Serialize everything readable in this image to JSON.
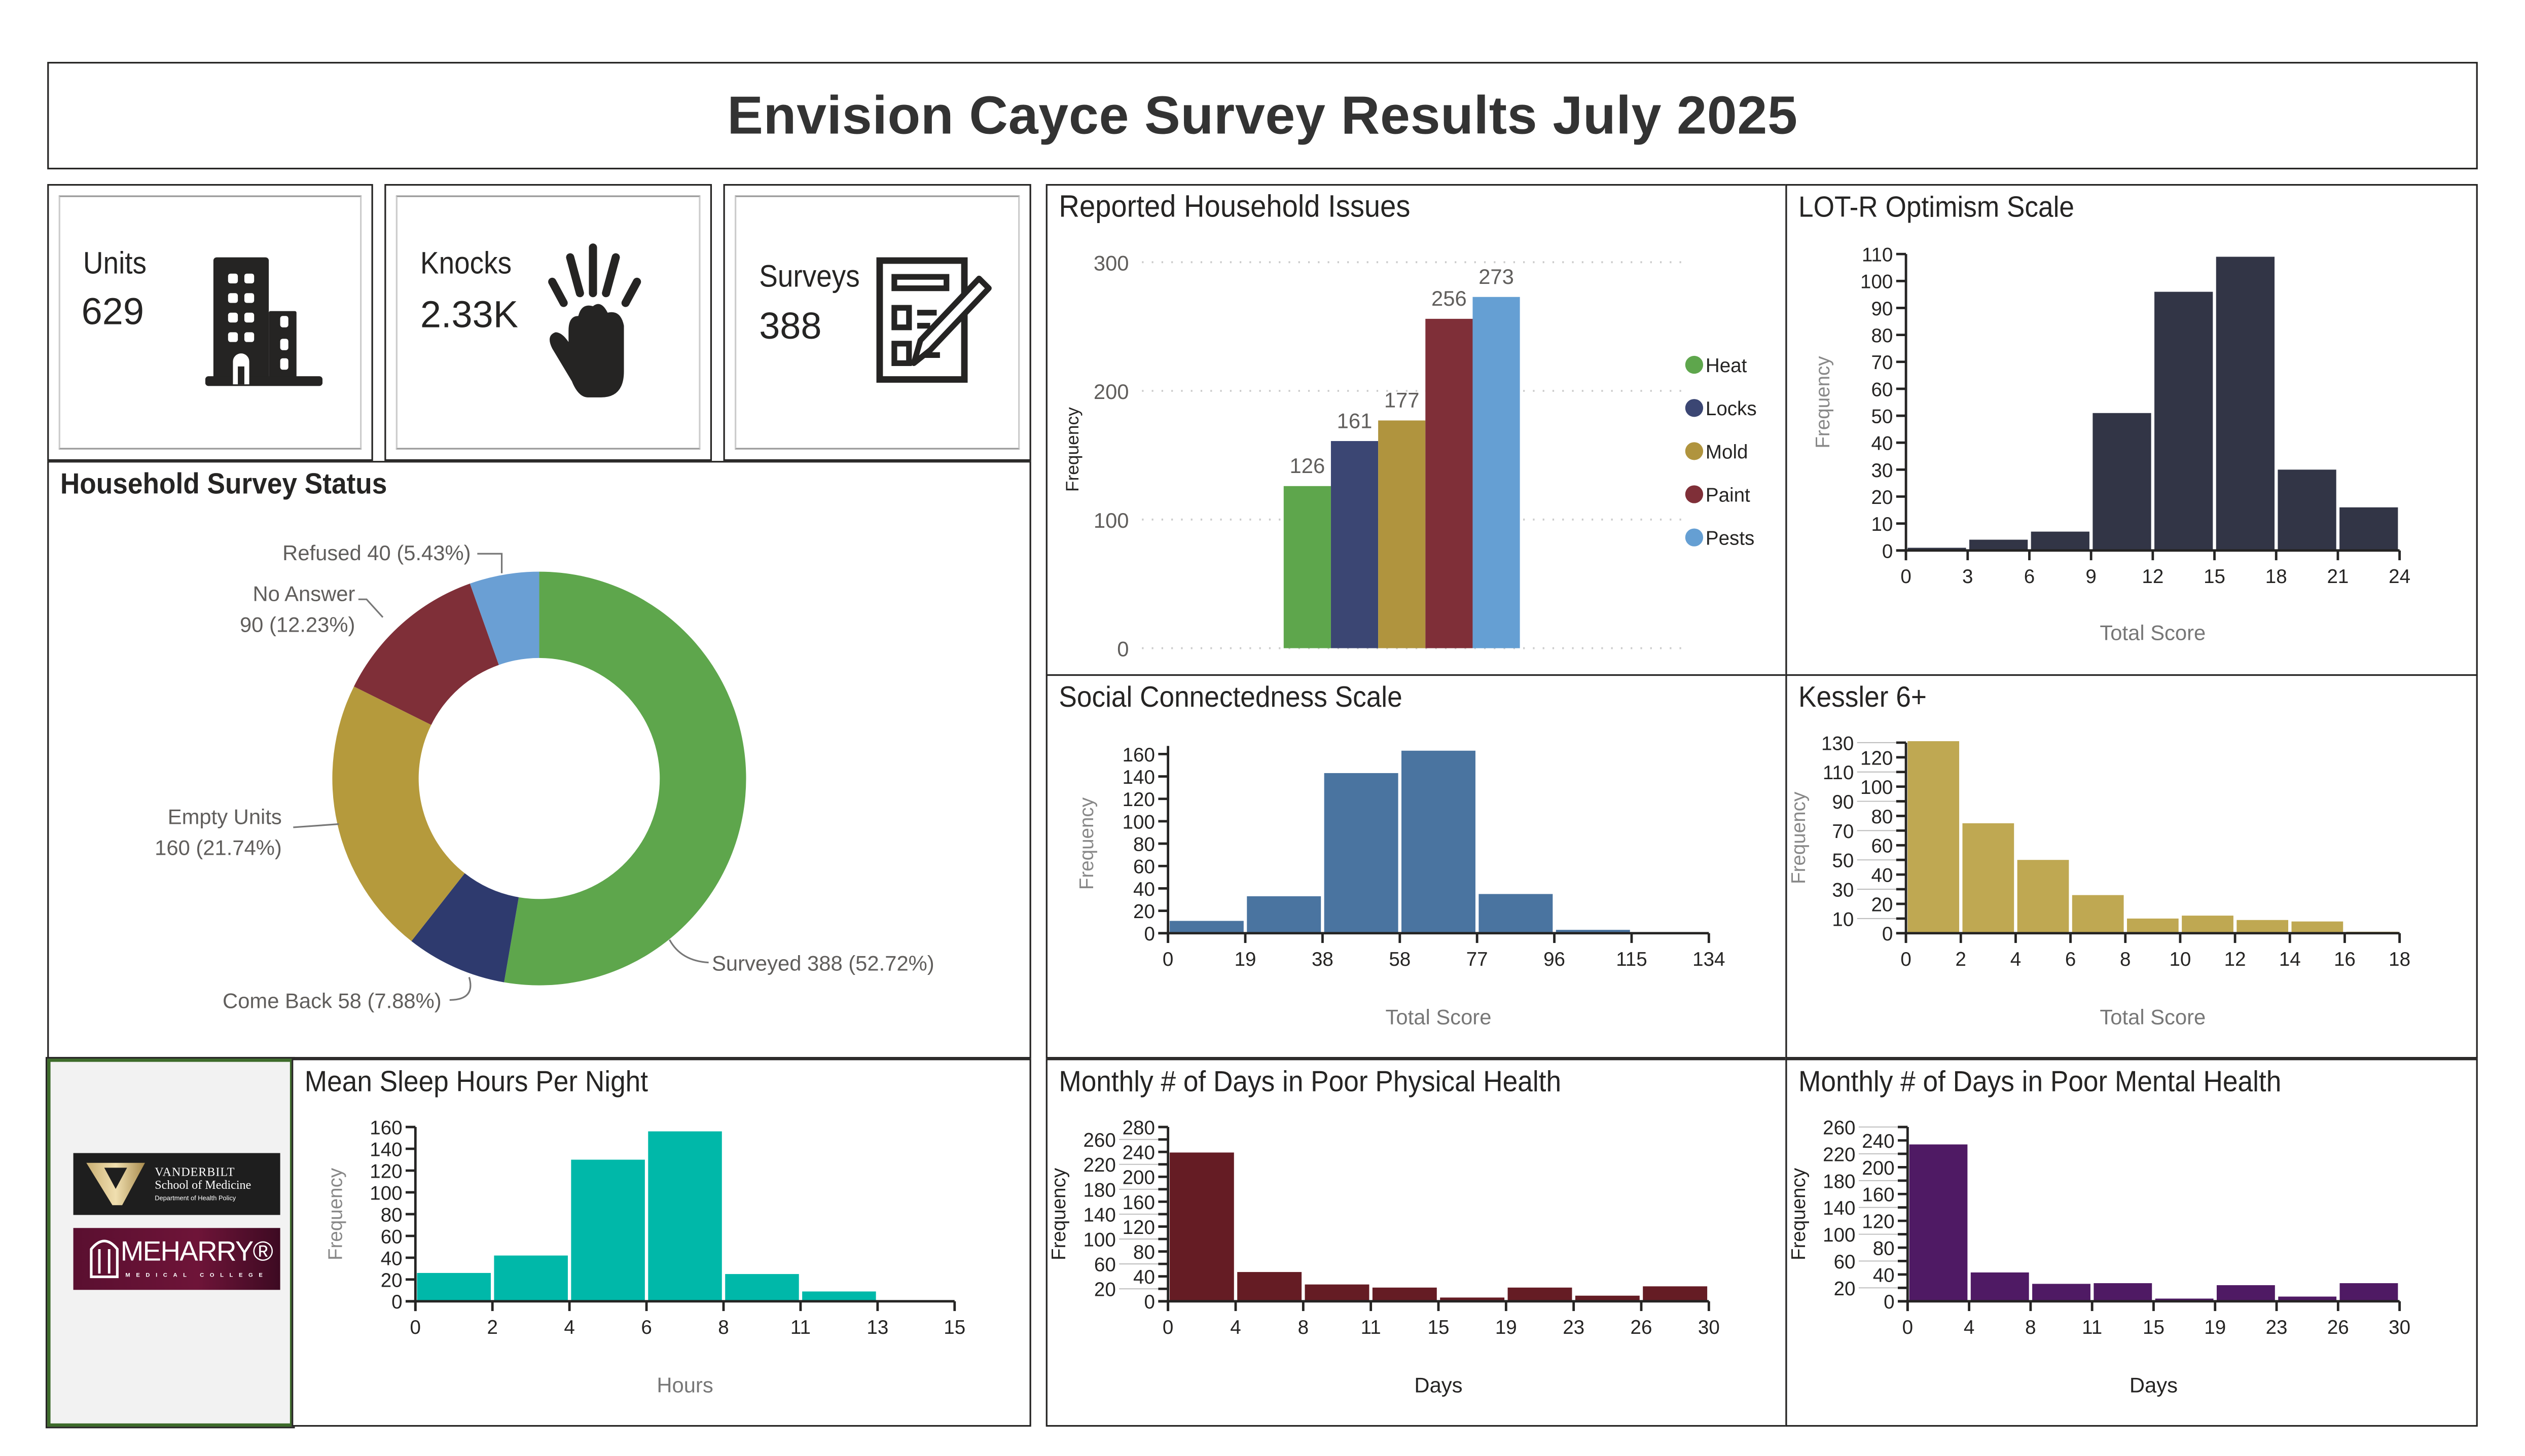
{
  "header": {
    "title": "Envision Cayce Survey Results July 2025"
  },
  "kpis": [
    {
      "label": "Units",
      "value": "629",
      "icon": "building-icon"
    },
    {
      "label": "Knocks",
      "value": "2.33K",
      "icon": "knocking-hand-icon"
    },
    {
      "label": "Surveys",
      "value": "388",
      "icon": "survey-clipboard-icon"
    }
  ],
  "logos": {
    "vanderbilt": {
      "line1": "VANDERBILT",
      "line2": "School of Medicine",
      "line3": "Department of Health Policy"
    },
    "meharry": {
      "line1": "MEHARRY®",
      "line2": "MEDICAL COLLEGE"
    }
  },
  "chart_data": [
    {
      "id": "status",
      "type": "pie",
      "title": "Household Survey Status",
      "donut": true,
      "slices": [
        {
          "name": "Surveyed",
          "value": 388,
          "percent": "52.72%",
          "color": "#5ea64c",
          "label": "Surveyed 388 (52.72%)"
        },
        {
          "name": "Come Back",
          "value": 58,
          "percent": "7.88%",
          "color": "#2e3a6e",
          "label": "Come Back 58 (7.88%)"
        },
        {
          "name": "Empty Units",
          "value": 160,
          "percent": "21.74%",
          "color": "#b59a3c",
          "label": "Empty Units",
          "label2": "160 (21.74%)"
        },
        {
          "name": "No Answer",
          "value": 90,
          "percent": "12.23%",
          "color": "#7f2f38",
          "label": "No Answer",
          "label2": "90 (12.23%)"
        },
        {
          "name": "Refused",
          "value": 40,
          "percent": "5.43%",
          "color": "#6a9fd4",
          "label": "Refused 40 (5.43%)"
        }
      ]
    },
    {
      "id": "issues",
      "type": "bar",
      "title": "Reported Household Issues",
      "ylabel": "Frequency",
      "ylim": [
        0,
        300
      ],
      "yticks": [
        0,
        100,
        200,
        300
      ],
      "grid": true,
      "legend_position": "right",
      "categories": [
        "Heat",
        "Locks",
        "Mold",
        "Paint",
        "Pests"
      ],
      "values": [
        126,
        161,
        177,
        256,
        273
      ],
      "colors": [
        "#5ea64c",
        "#3b4673",
        "#b0943e",
        "#7f2f38",
        "#659fd3"
      ]
    },
    {
      "id": "lotr",
      "type": "bar",
      "histogram": true,
      "title": "LOT-R Optimism Scale",
      "xlabel": "Total Score",
      "ylabel": "Frequency",
      "xticks": [
        0,
        3,
        6,
        9,
        12,
        15,
        18,
        21,
        24
      ],
      "yticks": [
        0,
        10,
        20,
        30,
        40,
        50,
        60,
        70,
        80,
        90,
        100,
        110
      ],
      "values": [
        1,
        4,
        7,
        51,
        96,
        109,
        30,
        16
      ],
      "color": "#323546"
    },
    {
      "id": "social",
      "type": "bar",
      "histogram": true,
      "title": "Social Connectedness Scale",
      "xlabel": "Total Score",
      "ylabel": "Frequency",
      "xticks": [
        0,
        19,
        38,
        58,
        77,
        96,
        115,
        134
      ],
      "yticks": [
        0,
        20,
        40,
        60,
        80,
        100,
        120,
        140,
        160
      ],
      "values": [
        11,
        33,
        143,
        163,
        35,
        3,
        0
      ],
      "color": "#4a74a0"
    },
    {
      "id": "kessler",
      "type": "bar",
      "histogram": true,
      "title": "Kessler 6+",
      "xlabel": "Total Score",
      "ylabel": "Frequency",
      "xticks": [
        0,
        2,
        4,
        6,
        8,
        10,
        12,
        14,
        16,
        18
      ],
      "yticks": [
        0,
        10,
        20,
        30,
        40,
        50,
        60,
        70,
        80,
        90,
        100,
        110,
        120,
        130
      ],
      "values": [
        131,
        75,
        50,
        26,
        10,
        12,
        9,
        8,
        1
      ],
      "color": "#bfa852"
    },
    {
      "id": "sleep",
      "type": "bar",
      "histogram": true,
      "title": "Mean Sleep Hours Per Night",
      "xlabel": "Hours",
      "ylabel": "Frequency",
      "xticks": [
        0,
        2,
        4,
        6,
        8,
        11,
        13,
        15
      ],
      "yticks": [
        0,
        20,
        40,
        60,
        80,
        100,
        120,
        140,
        160
      ],
      "values": [
        26,
        42,
        130,
        156,
        25,
        9,
        1
      ],
      "color": "#00b8a9"
    },
    {
      "id": "physical",
      "type": "bar",
      "histogram": true,
      "title": "Monthly # of Days in Poor Physical Health",
      "xlabel": "Days",
      "ylabel": "Frequency",
      "xticks": [
        0,
        4,
        8,
        11,
        15,
        19,
        23,
        26,
        30
      ],
      "yticks": [
        0,
        20,
        40,
        60,
        80,
        100,
        120,
        140,
        160,
        180,
        200,
        220,
        240,
        260,
        280
      ],
      "values": [
        239,
        47,
        27,
        22,
        6,
        22,
        9,
        24
      ],
      "color": "#651c24"
    },
    {
      "id": "mental",
      "type": "bar",
      "histogram": true,
      "title": "Monthly # of Days in Poor Mental Health",
      "xlabel": "Days",
      "ylabel": "Frequency",
      "xticks": [
        0,
        4,
        8,
        11,
        15,
        19,
        23,
        26,
        30
      ],
      "yticks": [
        0,
        20,
        40,
        60,
        80,
        100,
        120,
        140,
        160,
        180,
        200,
        220,
        240,
        260
      ],
      "values": [
        234,
        43,
        26,
        27,
        4,
        24,
        7,
        27
      ],
      "color": "#4f1a64"
    }
  ]
}
